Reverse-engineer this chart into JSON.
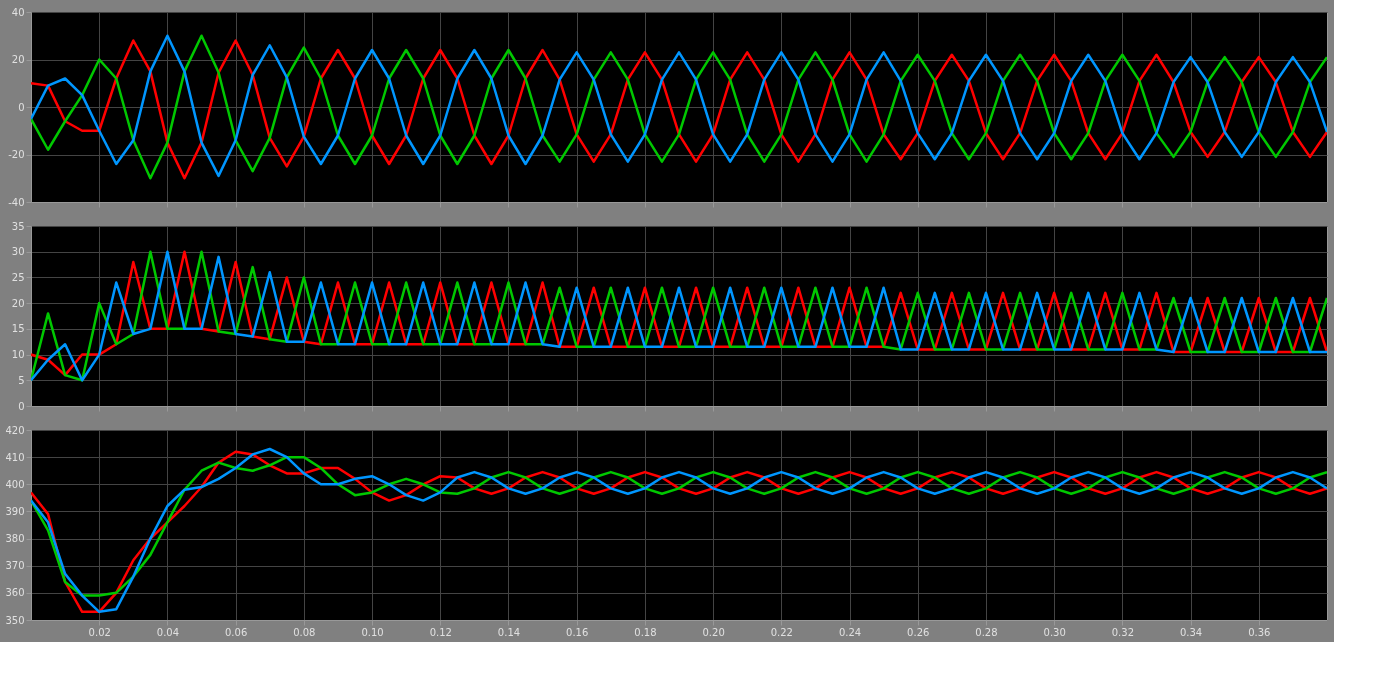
{
  "chart_data": [
    {
      "type": "line",
      "xlim": [
        0,
        0.38
      ],
      "ylim": [
        -40,
        40
      ],
      "yticks": [
        -40,
        -20,
        0,
        20,
        40
      ],
      "grid": true,
      "tick_labels": "y",
      "line_style": "solid",
      "marker": "none",
      "xticks": [
        0.02,
        0.04,
        0.06,
        0.08,
        0.1,
        0.12,
        0.14,
        0.16,
        0.18,
        0.2,
        0.22,
        0.24,
        0.26,
        0.28,
        0.3,
        0.32,
        0.34,
        0.36
      ],
      "x": [
        0,
        0.005,
        0.01,
        0.015,
        0.02,
        0.025,
        0.03,
        0.035,
        0.04,
        0.045,
        0.05,
        0.055,
        0.06,
        0.065,
        0.07,
        0.075,
        0.08,
        0.085,
        0.09,
        0.095,
        0.1,
        0.105,
        0.11,
        0.115,
        0.12,
        0.125,
        0.13,
        0.135,
        0.14,
        0.145,
        0.15,
        0.155,
        0.16,
        0.165,
        0.17,
        0.175,
        0.18,
        0.185,
        0.19,
        0.195,
        0.2,
        0.205,
        0.21,
        0.215,
        0.22,
        0.225,
        0.23,
        0.235,
        0.24,
        0.245,
        0.25,
        0.255,
        0.26,
        0.265,
        0.27,
        0.275,
        0.28,
        0.285,
        0.29,
        0.295,
        0.3,
        0.305,
        0.31,
        0.315,
        0.32,
        0.325,
        0.33,
        0.335,
        0.34,
        0.345,
        0.35,
        0.355,
        0.36,
        0.365,
        0.37,
        0.375,
        0.38
      ],
      "series": [
        {
          "color": "#ff0000",
          "values": [
            10,
            9,
            -6,
            -10,
            -10,
            12,
            28,
            15,
            -15,
            -30,
            -15,
            14.5,
            28,
            13.5,
            -13,
            -25,
            -12.5,
            12,
            24,
            12,
            -12,
            -24,
            -12,
            12,
            24,
            12,
            -12,
            -24,
            -12,
            12,
            24,
            11.5,
            -11.5,
            -23,
            -11.5,
            11.5,
            23,
            11.5,
            -11.5,
            -23,
            -11.5,
            11.5,
            23,
            11.5,
            -11.5,
            -23,
            -11.5,
            11.5,
            23,
            11.5,
            -11.5,
            -22,
            -11,
            11,
            22,
            11,
            -11,
            -22,
            -11,
            11,
            22,
            11,
            -11,
            -22,
            -11,
            11,
            22,
            10.5,
            -10.5,
            -21,
            -10.5,
            10.5,
            21,
            10.5,
            -10.5,
            -21,
            -10.5
          ]
        },
        {
          "color": "#00c800",
          "values": [
            -5,
            -18,
            -6,
            5,
            20,
            12,
            -14,
            -30,
            -15,
            15,
            30,
            14.5,
            -14,
            -27,
            -13,
            12.5,
            25,
            12,
            -12,
            -24,
            -12,
            12,
            24,
            12,
            -12,
            -24,
            -12,
            12,
            24,
            12,
            -12,
            -23,
            -11.5,
            11.5,
            23,
            11.5,
            -11.5,
            -23,
            -11.5,
            11.5,
            23,
            11.5,
            -11.5,
            -23,
            -11.5,
            11.5,
            23,
            11.5,
            -11.5,
            -23,
            -11.5,
            11,
            22,
            11,
            -11,
            -22,
            -11,
            11,
            22,
            11,
            -11,
            -22,
            -11,
            11,
            22,
            11,
            -11,
            -21,
            -10.5,
            10.5,
            21,
            10.5,
            -10.5,
            -21,
            -10.5,
            10.5,
            21
          ]
        },
        {
          "color": "#0096ff",
          "values": [
            -5,
            9,
            12,
            5,
            -10,
            -24,
            -14,
            15,
            30,
            15,
            -15,
            -29,
            -14,
            13.5,
            26,
            12.5,
            -12.5,
            -24,
            -12,
            12,
            24,
            12,
            -12,
            -24,
            -12,
            12,
            24,
            12,
            -12,
            -24,
            -12,
            11.5,
            23,
            11.5,
            -11.5,
            -23,
            -11.5,
            11.5,
            23,
            11.5,
            -11.5,
            -23,
            -11.5,
            11.5,
            23,
            11.5,
            -11.5,
            -23,
            -11.5,
            11.5,
            23,
            11,
            -11,
            -22,
            -11,
            11,
            22,
            11,
            -11,
            -22,
            -11,
            11,
            22,
            11,
            -11,
            -22,
            -11,
            10.5,
            21,
            10.5,
            -10.5,
            -21,
            -10.5,
            10.5,
            21,
            10.5,
            -10.5
          ]
        }
      ]
    },
    {
      "type": "line",
      "xlim": [
        0,
        0.38
      ],
      "ylim": [
        0,
        35
      ],
      "yticks": [
        0,
        5,
        10,
        15,
        20,
        25,
        30,
        35
      ],
      "grid": true,
      "tick_labels": "y",
      "line_style": "solid",
      "marker": "none",
      "xticks": [
        0.02,
        0.04,
        0.06,
        0.08,
        0.1,
        0.12,
        0.14,
        0.16,
        0.18,
        0.2,
        0.22,
        0.24,
        0.26,
        0.28,
        0.3,
        0.32,
        0.34,
        0.36
      ],
      "x": [
        0,
        0.005,
        0.01,
        0.015,
        0.02,
        0.025,
        0.03,
        0.035,
        0.04,
        0.045,
        0.05,
        0.055,
        0.06,
        0.065,
        0.07,
        0.075,
        0.08,
        0.085,
        0.09,
        0.095,
        0.1,
        0.105,
        0.11,
        0.115,
        0.12,
        0.125,
        0.13,
        0.135,
        0.14,
        0.145,
        0.15,
        0.155,
        0.16,
        0.165,
        0.17,
        0.175,
        0.18,
        0.185,
        0.19,
        0.195,
        0.2,
        0.205,
        0.21,
        0.215,
        0.22,
        0.225,
        0.23,
        0.235,
        0.24,
        0.245,
        0.25,
        0.255,
        0.26,
        0.265,
        0.27,
        0.275,
        0.28,
        0.285,
        0.29,
        0.295,
        0.3,
        0.305,
        0.31,
        0.315,
        0.32,
        0.325,
        0.33,
        0.335,
        0.34,
        0.345,
        0.35,
        0.355,
        0.36,
        0.365,
        0.37,
        0.375,
        0.38
      ],
      "series": [
        {
          "color": "#ff0000",
          "values": [
            10,
            9,
            6,
            10,
            10,
            12,
            28,
            15,
            15,
            30,
            15,
            14.5,
            28,
            13.5,
            13,
            25,
            12.5,
            12,
            24,
            12,
            12,
            24,
            12,
            12,
            24,
            12,
            12,
            24,
            12,
            12,
            24,
            11.5,
            11.5,
            23,
            11.5,
            11.5,
            23,
            11.5,
            11.5,
            23,
            11.5,
            11.5,
            23,
            11.5,
            11.5,
            23,
            11.5,
            11.5,
            23,
            11.5,
            11.5,
            22,
            11,
            11,
            22,
            11,
            11,
            22,
            11,
            11,
            22,
            11,
            11,
            22,
            11,
            11,
            22,
            10.5,
            10.5,
            21,
            10.5,
            10.5,
            21,
            10.5,
            10.5,
            21,
            10.5
          ]
        },
        {
          "color": "#00c800",
          "values": [
            5,
            18,
            6,
            5,
            20,
            12,
            14,
            30,
            15,
            15,
            30,
            14.5,
            14,
            27,
            13,
            12.5,
            25,
            12,
            12,
            24,
            12,
            12,
            24,
            12,
            12,
            24,
            12,
            12,
            24,
            12,
            12,
            23,
            11.5,
            11.5,
            23,
            11.5,
            11.5,
            23,
            11.5,
            11.5,
            23,
            11.5,
            11.5,
            23,
            11.5,
            11.5,
            23,
            11.5,
            11.5,
            23,
            11.5,
            11,
            22,
            11,
            11,
            22,
            11,
            11,
            22,
            11,
            11,
            22,
            11,
            11,
            22,
            11,
            11,
            21,
            10.5,
            10.5,
            21,
            10.5,
            10.5,
            21,
            10.5,
            10.5,
            21
          ]
        },
        {
          "color": "#0096ff",
          "values": [
            5,
            9,
            12,
            5,
            10,
            24,
            14,
            15,
            30,
            15,
            15,
            29,
            14,
            13.5,
            26,
            12.5,
            12.5,
            24,
            12,
            12,
            24,
            12,
            12,
            24,
            12,
            12,
            24,
            12,
            12,
            24,
            12,
            11.5,
            23,
            11.5,
            11.5,
            23,
            11.5,
            11.5,
            23,
            11.5,
            11.5,
            23,
            11.5,
            11.5,
            23,
            11.5,
            11.5,
            23,
            11.5,
            11.5,
            23,
            11,
            11,
            22,
            11,
            11,
            22,
            11,
            11,
            22,
            11,
            11,
            22,
            11,
            11,
            22,
            11,
            10.5,
            21,
            10.5,
            10.5,
            21,
            10.5,
            10.5,
            21,
            10.5,
            10.5
          ]
        }
      ]
    },
    {
      "type": "line",
      "xlim": [
        0,
        0.38
      ],
      "ylim": [
        350,
        420
      ],
      "yticks": [
        350,
        360,
        370,
        380,
        390,
        400,
        410,
        420
      ],
      "grid": true,
      "line_style": "solid",
      "marker": "none",
      "xticks": [
        0.02,
        0.04,
        0.06,
        0.08,
        {
          "value": 0.1,
          "label": "0.10"
        },
        0.12,
        0.14,
        0.16,
        0.18,
        {
          "value": 0.2,
          "label": "0.20"
        },
        0.22,
        0.24,
        0.26,
        0.28,
        {
          "value": 0.3,
          "label": "0.30"
        },
        0.32,
        0.34,
        0.36
      ],
      "x": [
        0,
        0.005,
        0.01,
        0.015,
        0.02,
        0.025,
        0.03,
        0.035,
        0.04,
        0.045,
        0.05,
        0.055,
        0.06,
        0.065,
        0.07,
        0.075,
        0.08,
        0.085,
        0.09,
        0.095,
        0.1,
        0.105,
        0.11,
        0.115,
        0.12,
        0.125,
        0.13,
        0.135,
        0.14,
        0.145,
        0.15,
        0.155,
        0.16,
        0.165,
        0.17,
        0.175,
        0.18,
        0.185,
        0.19,
        0.195,
        0.2,
        0.205,
        0.21,
        0.215,
        0.22,
        0.225,
        0.23,
        0.235,
        0.24,
        0.245,
        0.25,
        0.255,
        0.26,
        0.265,
        0.27,
        0.275,
        0.28,
        0.285,
        0.29,
        0.295,
        0.3,
        0.305,
        0.31,
        0.315,
        0.32,
        0.325,
        0.33,
        0.335,
        0.34,
        0.345,
        0.35,
        0.355,
        0.36,
        0.365,
        0.37,
        0.375,
        0.38
      ],
      "series": [
        {
          "color": "#ff0000",
          "values": [
            397,
            389,
            364,
            353,
            353,
            360,
            372,
            380,
            386,
            392,
            399,
            408,
            412,
            411,
            407,
            404,
            404,
            406,
            406,
            402,
            397,
            394,
            396,
            400,
            403,
            402.5,
            398.5,
            396.5,
            398.5,
            402.5,
            404.5,
            402.5,
            398.5,
            396.5,
            398.5,
            402.5,
            404.5,
            402.5,
            398.5,
            396.5,
            398.5,
            402.5,
            404.5,
            402.5,
            398.5,
            396.5,
            398.5,
            402.5,
            404.5,
            402.5,
            398.5,
            396.5,
            398.5,
            402.5,
            404.5,
            402.5,
            398.5,
            396.5,
            398.5,
            402.5,
            404.5,
            402.5,
            398.5,
            396.5,
            398.5,
            402.5,
            404.5,
            402.5,
            398.5,
            396.5,
            398.5,
            402.5,
            404.5,
            402.5,
            398.5,
            396.5,
            398.5
          ]
        },
        {
          "color": "#00c800",
          "values": [
            394,
            383,
            364,
            359,
            359,
            360,
            366,
            374,
            386,
            398,
            405,
            408,
            406,
            405,
            407,
            410,
            410,
            406,
            400,
            396,
            397,
            400,
            402,
            400,
            397,
            396.5,
            398.5,
            402.5,
            404.5,
            402.5,
            398.5,
            396.5,
            398.5,
            402.5,
            404.5,
            402.5,
            398.5,
            396.5,
            398.5,
            402.5,
            404.5,
            402.5,
            398.5,
            396.5,
            398.5,
            402.5,
            404.5,
            402.5,
            398.5,
            396.5,
            398.5,
            402.5,
            404.5,
            402.5,
            398.5,
            396.5,
            398.5,
            402.5,
            404.5,
            402.5,
            398.5,
            396.5,
            398.5,
            402.5,
            404.5,
            402.5,
            398.5,
            396.5,
            398.5,
            402.5,
            404.5,
            402.5,
            398.5,
            396.5,
            398.5,
            402.5,
            404.5
          ]
        },
        {
          "color": "#0096ff",
          "values": [
            394,
            386,
            367,
            359,
            353,
            354,
            366,
            380,
            392,
            398,
            399,
            402,
            406,
            411,
            413,
            410,
            404,
            400,
            400,
            402,
            403,
            400,
            396,
            394,
            397,
            402.5,
            404.5,
            402.5,
            398.5,
            396.5,
            398.5,
            402.5,
            404.5,
            402.5,
            398.5,
            396.5,
            398.5,
            402.5,
            404.5,
            402.5,
            398.5,
            396.5,
            398.5,
            402.5,
            404.5,
            402.5,
            398.5,
            396.5,
            398.5,
            402.5,
            404.5,
            402.5,
            398.5,
            396.5,
            398.5,
            402.5,
            404.5,
            402.5,
            398.5,
            396.5,
            398.5,
            402.5,
            404.5,
            402.5,
            398.5,
            396.5,
            398.5,
            402.5,
            404.5,
            402.5,
            398.5,
            396.5,
            398.5,
            402.5,
            404.5,
            402.5,
            398.5
          ]
        }
      ]
    }
  ]
}
